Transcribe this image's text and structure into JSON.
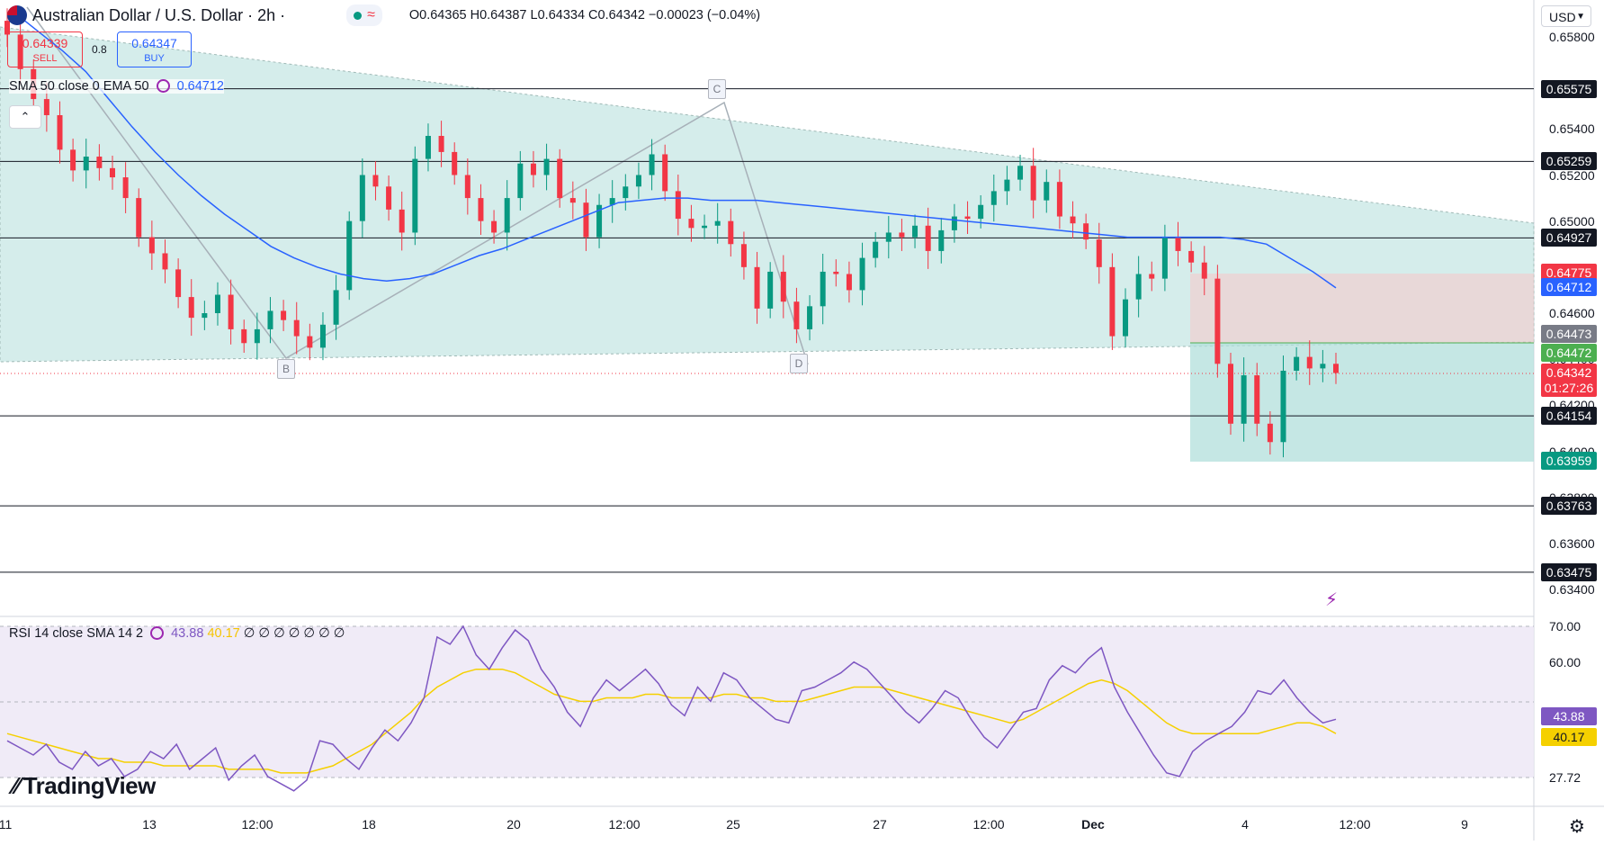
{
  "header": {
    "symbol": "Australian Dollar / U.S. Dollar · 2h ·",
    "ohlc_open": "O0.64365",
    "ohlc_high": "H0.64387",
    "ohlc_low": "L0.64334",
    "ohlc_close": "C0.64342",
    "ohlc_change": "−0.00023 (−0.04%)"
  },
  "trade": {
    "sell_price": "0.64339",
    "sell_label": "SELL",
    "spread": "0.8",
    "buy_price": "0.64347",
    "buy_label": "BUY"
  },
  "indicators": {
    "ma_label": "SMA 50 close 0 EMA 50",
    "ma_value": "0.64712",
    "rsi_label": "RSI 14 close SMA 14 2",
    "rsi_value": "43.88",
    "rsi_sma_value": "40.17",
    "rsi_placeholders": "∅ ∅ ∅ ∅ ∅ ∅ ∅"
  },
  "currency": "USD",
  "brand": "TradingView",
  "colors": {
    "bull": "#089981",
    "bear": "#f23645",
    "ma": "#2962ff",
    "rsi": "#7e57c2",
    "rsi_sma": "#f5c400",
    "triangle_fill": "#b2dfdb"
  },
  "chart_data": {
    "type": "candlestick",
    "symbol": "AUDUSD",
    "timeframe": "2h",
    "x_ticks": [
      "11",
      "13",
      "12:00",
      "18",
      "20",
      "12:00",
      "25",
      "27",
      "12:00",
      "Dec",
      "4",
      "12:00",
      "9"
    ],
    "y_ticks": [
      "0.65800",
      "0.65400",
      "0.65200",
      "0.65000",
      "0.64600",
      "0.64400",
      "0.64200",
      "0.64000",
      "0.63800",
      "0.63600",
      "0.63400"
    ],
    "ylim": [
      0.633,
      0.6595
    ],
    "horizontal_levels": [
      "0.65575",
      "0.65259",
      "0.64927",
      "0.64154",
      "0.63763",
      "0.63475"
    ],
    "price_tags": [
      {
        "label": "0.64775",
        "color": "#f23645"
      },
      {
        "label": "0.64712",
        "color": "#2962ff"
      },
      {
        "label": "0.64473",
        "color": "#787b86"
      },
      {
        "label": "0.64472",
        "color": "#4caf50"
      },
      {
        "label": "0.64342",
        "color": "#f23645"
      },
      {
        "label": "01:27:26",
        "color": "#f23645"
      },
      {
        "label": "0.63959",
        "color": "#089981"
      }
    ],
    "position": {
      "entry": 0.64472,
      "stop": 0.64775,
      "target": 0.63959
    },
    "pattern_points": [
      "C",
      "B",
      "D"
    ],
    "close_series": [
      0.6581,
      0.6566,
      0.6553,
      0.6546,
      0.6531,
      0.6522,
      0.6528,
      0.6523,
      0.6519,
      0.651,
      0.6493,
      0.6486,
      0.6479,
      0.6467,
      0.6458,
      0.646,
      0.6468,
      0.6453,
      0.6447,
      0.6453,
      0.6461,
      0.6457,
      0.645,
      0.6445,
      0.6455,
      0.647,
      0.65,
      0.652,
      0.6515,
      0.6505,
      0.6495,
      0.6527,
      0.6537,
      0.653,
      0.652,
      0.651,
      0.65,
      0.6495,
      0.651,
      0.6525,
      0.652,
      0.6527,
      0.651,
      0.6508,
      0.6493,
      0.6507,
      0.651,
      0.6515,
      0.652,
      0.6529,
      0.6513,
      0.6501,
      0.6497,
      0.6498,
      0.65,
      0.649,
      0.648,
      0.6462,
      0.6478,
      0.6465,
      0.6453,
      0.6463,
      0.6478,
      0.6477,
      0.647,
      0.6484,
      0.6491,
      0.6495,
      0.6493,
      0.6498,
      0.6487,
      0.6496,
      0.6502,
      0.6501,
      0.6507,
      0.6513,
      0.6518,
      0.6524,
      0.6509,
      0.6517,
      0.6502,
      0.6499,
      0.6492,
      0.648,
      0.645,
      0.6466,
      0.6477,
      0.6475,
      0.6493,
      0.6487,
      0.6482,
      0.6475,
      0.6438,
      0.6412,
      0.6433,
      0.6412,
      0.6404,
      0.6435,
      0.6441,
      0.6436,
      0.6438,
      0.6434
    ],
    "ema50_series": [
      0.659,
      0.6582,
      0.6574,
      0.6565,
      0.6553,
      0.6541,
      0.653,
      0.652,
      0.6511,
      0.6503,
      0.6496,
      0.6489,
      0.6484,
      0.648,
      0.6477,
      0.6475,
      0.6474,
      0.6475,
      0.6477,
      0.6481,
      0.6485,
      0.6488,
      0.6492,
      0.6496,
      0.65,
      0.6504,
      0.6508,
      0.6509,
      0.651,
      0.651,
      0.6509,
      0.6509,
      0.6509,
      0.6508,
      0.6507,
      0.6506,
      0.6505,
      0.6504,
      0.6503,
      0.6502,
      0.6501,
      0.65,
      0.6499,
      0.6498,
      0.6497,
      0.6496,
      0.6495,
      0.6494,
      0.6493,
      0.6493,
      0.6493,
      0.6493,
      0.6493,
      0.6492,
      0.649,
      0.6484,
      0.6478,
      0.6471
    ],
    "rsi_ylim": [
      20,
      75
    ],
    "rsi_levels": [
      70.0,
      60.0,
      44.03,
      27.72
    ],
    "rsi_series": [
      38,
      36,
      34,
      37,
      32,
      30,
      35,
      31,
      33,
      28,
      30,
      35,
      33,
      37,
      30,
      33,
      36,
      27,
      31,
      34,
      28,
      26,
      24,
      27,
      38,
      37,
      33,
      30,
      36,
      41,
      38,
      43,
      50,
      67,
      65,
      70,
      62,
      58,
      64,
      69,
      66,
      58,
      53,
      46,
      42,
      50,
      55,
      52,
      55,
      58,
      54,
      48,
      45,
      53,
      49,
      57,
      55,
      50,
      47,
      44,
      43,
      52,
      53,
      55,
      57,
      60,
      58,
      54,
      50,
      46,
      43,
      47,
      52,
      50,
      44,
      39,
      36,
      41,
      46,
      47,
      55,
      59,
      57,
      61,
      64,
      53,
      46,
      40,
      34,
      29,
      28,
      35,
      38,
      40,
      42,
      46,
      52,
      51,
      55,
      50,
      46,
      43,
      44
    ],
    "rsi_sma_series": [
      40,
      39,
      38,
      37,
      36,
      35,
      34,
      33,
      33,
      32,
      32,
      32,
      31,
      31,
      31,
      31,
      31,
      30,
      30,
      30,
      30,
      29,
      29,
      29,
      30,
      31,
      33,
      35,
      37,
      40,
      43,
      46,
      50,
      53,
      55,
      57,
      58,
      58,
      58,
      57,
      55,
      53,
      51,
      50,
      49,
      49,
      50,
      50,
      50,
      51,
      51,
      50,
      50,
      50,
      50,
      51,
      51,
      50,
      50,
      49,
      49,
      49,
      50,
      51,
      52,
      53,
      53,
      53,
      52,
      51,
      50,
      49,
      48,
      47,
      46,
      45,
      44,
      43,
      44,
      46,
      48,
      50,
      52,
      54,
      55,
      54,
      52,
      49,
      46,
      43,
      41,
      40,
      40,
      40,
      40,
      40,
      40,
      41,
      42,
      43,
      43,
      42,
      40
    ]
  }
}
